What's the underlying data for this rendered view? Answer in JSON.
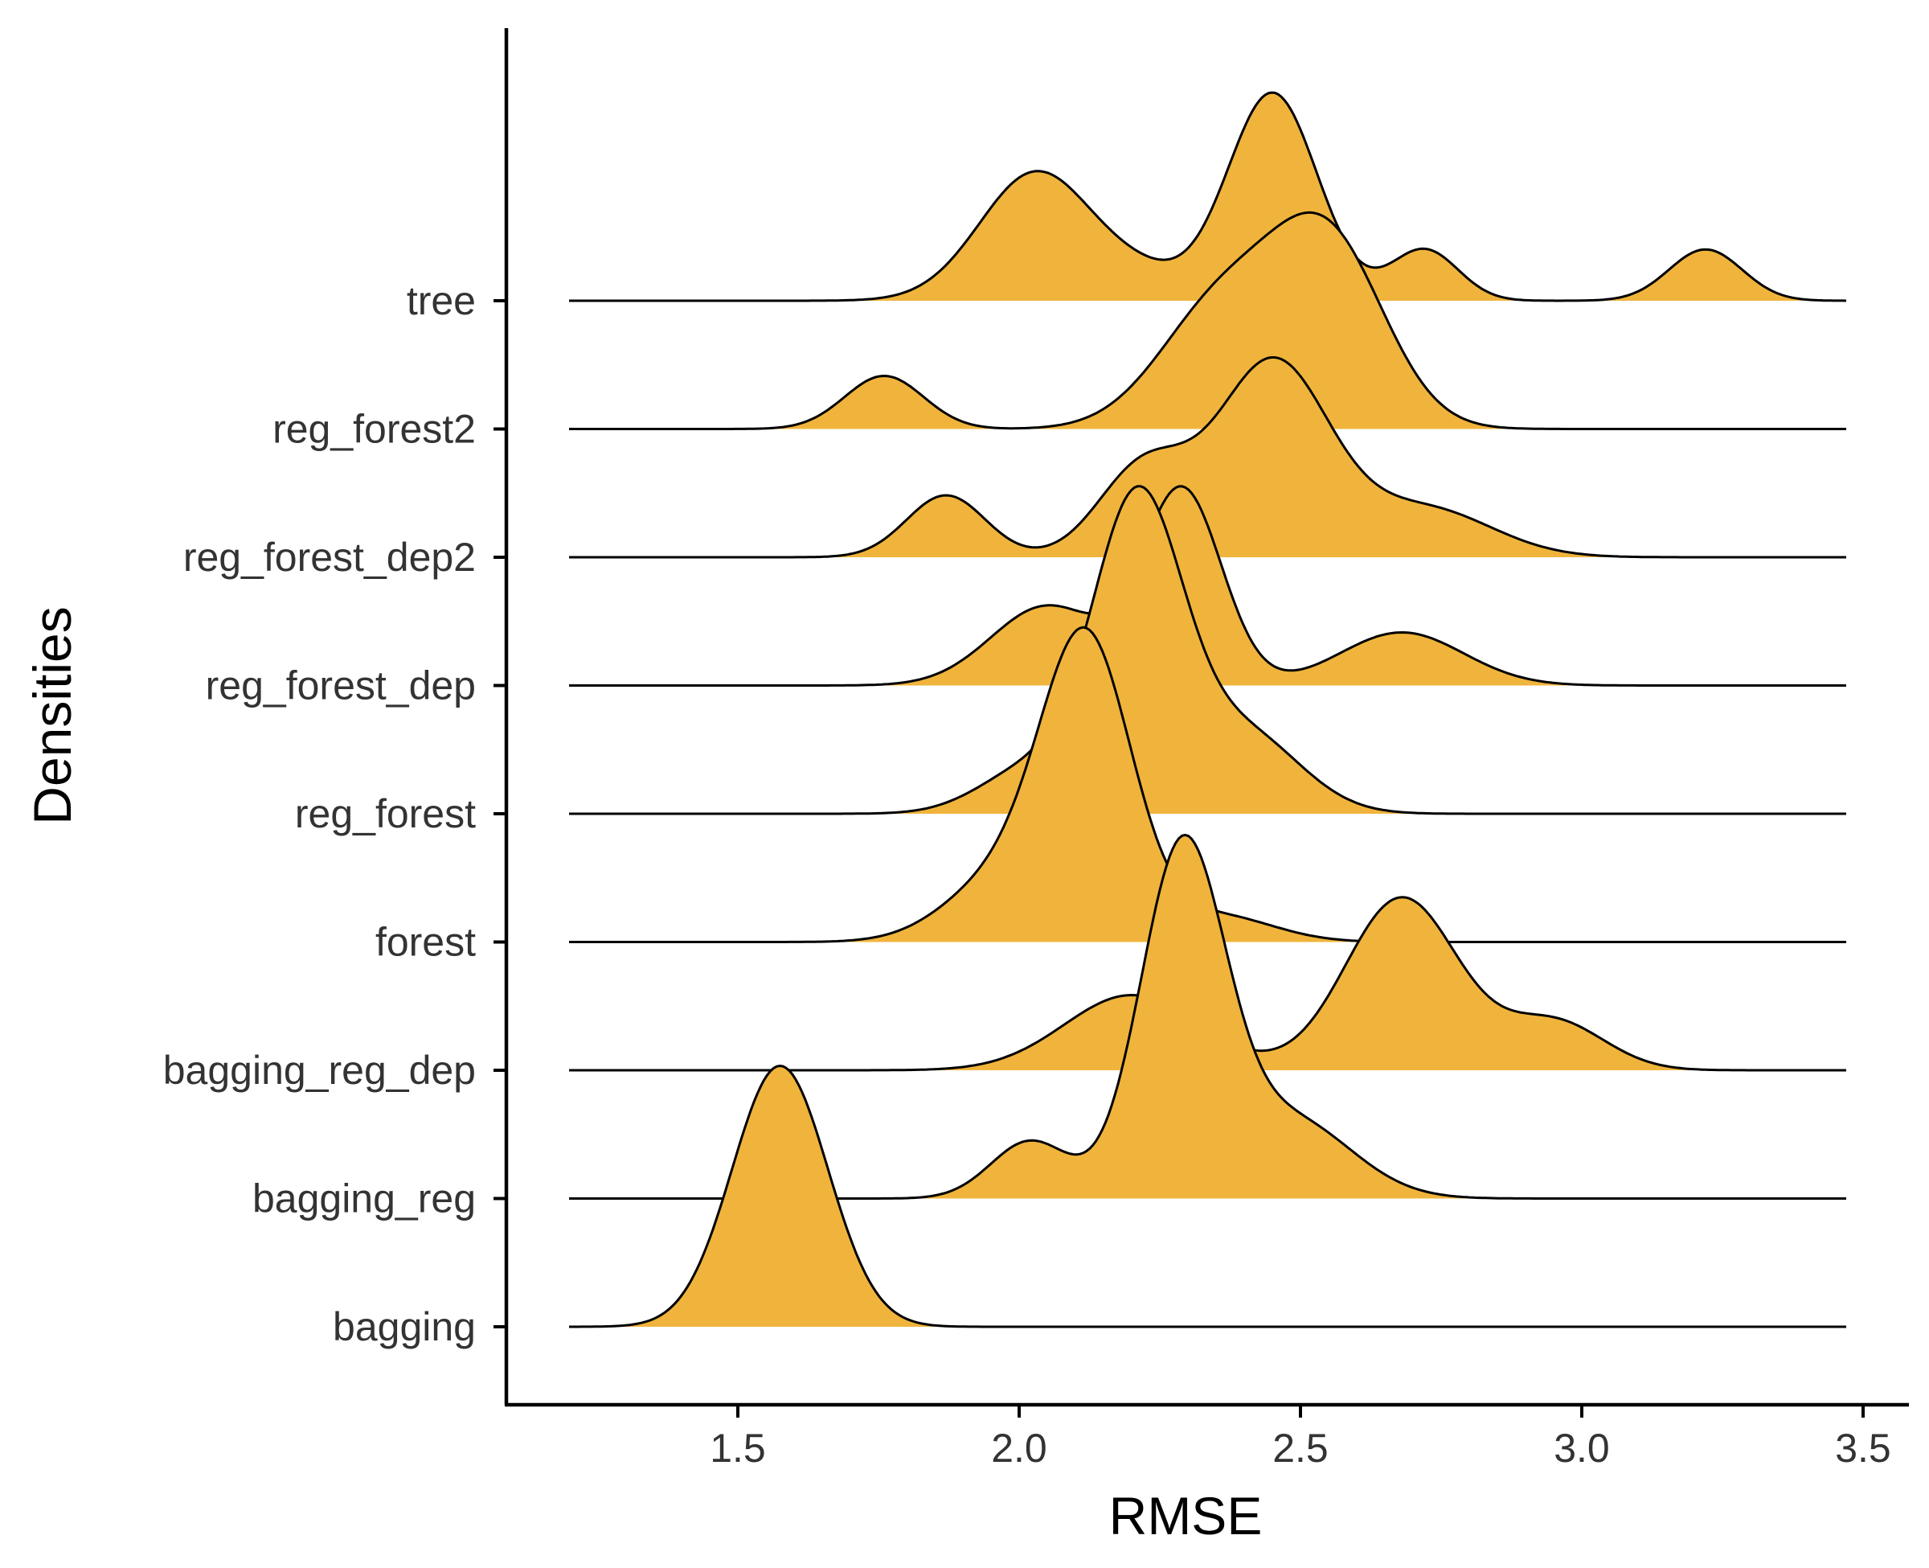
{
  "chart_data": {
    "type": "ridgeline",
    "xlabel": "RMSE",
    "ylabel": "Densities",
    "xlim": [
      1.2,
      3.47
    ],
    "x_ticks": [
      1.5,
      2.0,
      2.5,
      3.0,
      3.5
    ],
    "x_tick_labels": [
      "1.5",
      "2.0",
      "2.5",
      "3.0",
      "3.5"
    ],
    "fill_color": "#F0B43C",
    "line_color": "#000000",
    "series": [
      {
        "name": "bagging",
        "peaks": [
          {
            "mu": 1.575,
            "sd": 0.085,
            "h": 2.95
          }
        ]
      },
      {
        "name": "bagging_reg",
        "peaks": [
          {
            "mu": 2.29,
            "sd": 0.075,
            "h": 3.9
          },
          {
            "mu": 2.02,
            "sd": 0.07,
            "h": 0.65
          },
          {
            "mu": 2.48,
            "sd": 0.11,
            "h": 0.9
          }
        ]
      },
      {
        "name": "bagging_reg_dep",
        "peaks": [
          {
            "mu": 2.68,
            "sd": 0.1,
            "h": 1.95
          },
          {
            "mu": 2.2,
            "sd": 0.12,
            "h": 0.85
          },
          {
            "mu": 2.95,
            "sd": 0.09,
            "h": 0.55
          }
        ]
      },
      {
        "name": "forest",
        "peaks": [
          {
            "mu": 2.12,
            "sd": 0.08,
            "h": 3.3
          },
          {
            "mu": 1.97,
            "sd": 0.1,
            "h": 0.7
          },
          {
            "mu": 2.35,
            "sd": 0.1,
            "h": 0.3
          }
        ]
      },
      {
        "name": "reg_forest",
        "peaks": [
          {
            "mu": 2.21,
            "sd": 0.08,
            "h": 3.5
          },
          {
            "mu": 2.02,
            "sd": 0.09,
            "h": 0.5
          },
          {
            "mu": 2.4,
            "sd": 0.1,
            "h": 0.9
          }
        ]
      },
      {
        "name": "reg_forest_dep",
        "peaks": [
          {
            "mu": 2.29,
            "sd": 0.07,
            "h": 2.2
          },
          {
            "mu": 2.05,
            "sd": 0.1,
            "h": 0.9
          },
          {
            "mu": 2.68,
            "sd": 0.11,
            "h": 0.6
          }
        ]
      },
      {
        "name": "reg_forest_dep2",
        "peaks": [
          {
            "mu": 2.45,
            "sd": 0.1,
            "h": 2.2
          },
          {
            "mu": 1.87,
            "sd": 0.07,
            "h": 0.7
          },
          {
            "mu": 2.22,
            "sd": 0.08,
            "h": 1.0
          },
          {
            "mu": 2.72,
            "sd": 0.12,
            "h": 0.55
          }
        ]
      },
      {
        "name": "reg_forest2",
        "peaks": [
          {
            "mu": 2.55,
            "sd": 0.1,
            "h": 2.05
          },
          {
            "mu": 1.76,
            "sd": 0.07,
            "h": 0.6
          },
          {
            "mu": 2.36,
            "sd": 0.11,
            "h": 1.4
          }
        ]
      },
      {
        "name": "tree",
        "peaks": [
          {
            "mu": 2.45,
            "sd": 0.08,
            "h": 2.35
          },
          {
            "mu": 2.03,
            "sd": 0.1,
            "h": 1.45
          },
          {
            "mu": 2.72,
            "sd": 0.06,
            "h": 0.58
          },
          {
            "mu": 3.22,
            "sd": 0.065,
            "h": 0.58
          },
          {
            "mu": 2.22,
            "sd": 0.08,
            "h": 0.25
          }
        ]
      }
    ]
  }
}
